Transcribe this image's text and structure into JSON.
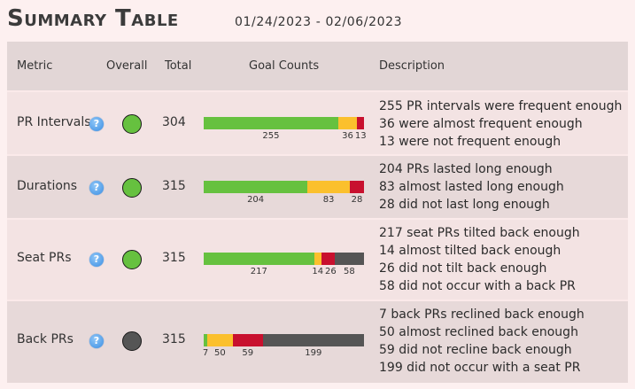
{
  "header": {
    "title": "Summary Table",
    "daterange": "01/24/2023 - 02/06/2023"
  },
  "columns": {
    "metric": "Metric",
    "overall": "Overall",
    "total": "Total",
    "goal": "Goal Counts",
    "desc": "Description"
  },
  "colors": {
    "good": "#66c13f",
    "almost": "#fbc02d",
    "bad": "#c8102e",
    "none": "#555555",
    "ok_status": "#66c13f",
    "na_status": "#555555"
  },
  "rows": [
    {
      "metric": "PR Intervals",
      "total": "304",
      "status": "good",
      "counts": {
        "good": "255",
        "almost": "36",
        "bad": "13"
      },
      "desc": [
        "255 PR intervals were frequent enough",
        "36 were almost frequent enough",
        "13 were not frequent enough"
      ]
    },
    {
      "metric": "Durations",
      "total": "315",
      "status": "good",
      "counts": {
        "good": "204",
        "almost": "83",
        "bad": "28"
      },
      "desc": [
        "204 PRs lasted long enough",
        "83 almost lasted long enough",
        "28 did not last long enough"
      ]
    },
    {
      "metric": "Seat PRs",
      "total": "315",
      "status": "good",
      "counts": {
        "good": "217",
        "almost": "14",
        "bad": "26",
        "none": "58"
      },
      "desc": [
        "217 seat PRs tilted back enough",
        "14 almost tilted back enough",
        "26 did not tilt back enough",
        "58 did not occur with a back PR"
      ]
    },
    {
      "metric": "Back PRs",
      "total": "315",
      "status": "none",
      "counts": {
        "good": "7",
        "almost": "50",
        "bad": "59",
        "none": "199"
      },
      "desc": [
        "7 back PRs reclined back enough",
        "50 almost reclined back enough",
        "59 did not recline back enough",
        "199 did not occur with a seat PR"
      ]
    }
  ]
}
